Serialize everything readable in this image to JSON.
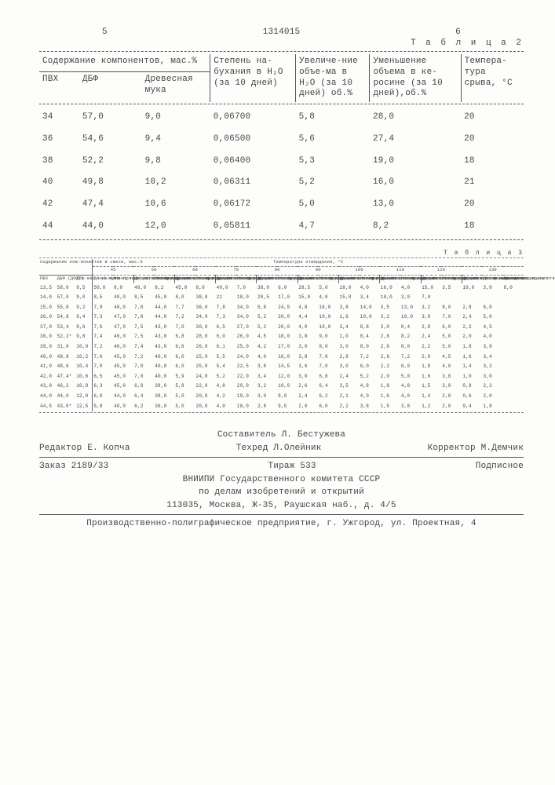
{
  "header": {
    "leftNum": "5",
    "docNum": "1314015",
    "rightNum": "6",
    "table2Label": "Т а б л и ц а 2"
  },
  "table2": {
    "groupHeader": "Содержание компонентов, мас.%",
    "cols": {
      "c1": "ПВХ",
      "c2": "ДБФ",
      "c3": "Древесная мука",
      "c4": "Степень на-бухания в H₂O (за 10 дней)",
      "c5": "Увеличе-ние объе-ма в H₂O (за 10 дней) об.%",
      "c6": "Уменьшение объема в ке-росине (за 10 дней),об.%",
      "c7": "Темпера-тура срыва, °С"
    },
    "rows": [
      {
        "c1": "34",
        "c2": "57,0",
        "c3": "9,0",
        "c4": "0,06700",
        "c5": "5,8",
        "c6": "28,0",
        "c7": "20"
      },
      {
        "c1": "36",
        "c2": "54,6",
        "c3": "9,4",
        "c4": "0,06500",
        "c5": "5,6",
        "c6": "27,4",
        "c7": "20"
      },
      {
        "c1": "38",
        "c2": "52,2",
        "c3": "9,8",
        "c4": "0,06400",
        "c5": "5,3",
        "c6": "19,0",
        "c7": "18"
      },
      {
        "c1": "40",
        "c2": "49,8",
        "c3": "10,2",
        "c4": "0,06311",
        "c5": "5,2",
        "c6": "16,0",
        "c7": "21"
      },
      {
        "c1": "42",
        "c2": "47,4",
        "c3": "10,6",
        "c4": "0,06172",
        "c5": "5,0",
        "c6": "13,0",
        "c7": "20"
      },
      {
        "c1": "44",
        "c2": "44,0",
        "c3": "12,0",
        "c4": "0,05811",
        "c5": "4,7",
        "c6": "8,2",
        "c7": "18"
      }
    ]
  },
  "table3": {
    "label": "Т а б л и ц а 3",
    "leftGroupHeader": "Содержание ком-понентов в смеси, мас.%",
    "tempHeader": "Температура отвердения, °С",
    "tempCols": [
      "45",
      "50",
      "60",
      "70",
      "80",
      "90",
      "100",
      "110",
      "120",
      "130"
    ],
    "mixCols": {
      "c1": "ПВХ",
      "c2": "ДБФ (ДОФ*)",
      "c3": "Дре-вес-ная мука"
    },
    "phase": {
      "before": "До на-чала про-цес-са от-вер-жде-ния",
      "end": "Конец про-цесса от-вер-жде-ния",
      "before2": "До на-чала от-вер-ждения",
      "end2": "Конец процес-са отв-ердения"
    },
    "rows": [
      {
        "mix": [
          "13,5",
          "58,0",
          "8,5"
        ],
        "vals": [
          "50,0",
          "8,0",
          "48,0",
          "8,2",
          "45,0",
          "8,0",
          "40,0",
          "7,0",
          "38,0",
          "6,0",
          "28,5",
          "5,0",
          "18,0",
          "4,0",
          "16,0",
          "4,0",
          "15,0",
          "3,5",
          "10,0",
          "3,0",
          "8,0"
        ]
      },
      {
        "mix": [
          "14,0",
          "57,0",
          "9,0"
        ],
        "vals": [
          "8,5",
          "48,0",
          "8,5",
          "45,0",
          "8,0",
          "38,0",
          "21",
          "18,0",
          "20,5",
          "17,0",
          "15,0",
          "4,0",
          "15,0",
          "3,4",
          "10,0",
          "3,0",
          "7,0",
          "",
          "",
          "",
          ""
        ]
      },
      {
        "mix": [
          "15,0",
          "55,8",
          "9,2"
        ],
        "vals": [
          "7,8",
          "48,0",
          "7,8",
          "44,0",
          "7,7",
          "36,0",
          "7,8",
          "34,0",
          "5,8",
          "24,5",
          "4,8",
          "16,0",
          "3,8",
          "14,0",
          "3,5",
          "13,0",
          "3,2",
          "8,0",
          "2,8",
          "6,0",
          ""
        ]
      },
      {
        "mix": [
          "36,0",
          "54,6",
          "9,4"
        ],
        "vals": [
          "7,3",
          "47,0",
          "7,8",
          "44,0",
          "7,2",
          "34,0",
          "7,3",
          "34,0",
          "5,2",
          "20,0",
          "4,4",
          "10,0",
          "1,6",
          "10,0",
          "3,2",
          "10,0",
          "3,0",
          "7,0",
          "2,4",
          "5,0",
          ""
        ]
      },
      {
        "mix": [
          "37,0",
          "53,4",
          "9,6"
        ],
        "vals": [
          "7,6",
          "47,0",
          "7,5",
          "43,0",
          "7,0",
          "30,0",
          "6,5",
          "27,0",
          "5,2",
          "20,0",
          "4,0",
          "10,0",
          "3,4",
          "8,8",
          "3,0",
          "8,4",
          "2,8",
          "6,0",
          "2,2",
          "4,5",
          ""
        ]
      },
      {
        "mix": [
          "38,0",
          "52,2*",
          "9,8"
        ],
        "vals": [
          "7,4",
          "46,0",
          "7,5",
          "43,0",
          "6,8",
          "28,0",
          "6,0",
          "26,0",
          "4,5",
          "18,0",
          "3,8",
          "9,0",
          "1,0",
          "8,4",
          "2,8",
          "8,2",
          "2,4",
          "5,0",
          "2,0",
          "4,0",
          ""
        ]
      },
      {
        "mix": [
          "39,0",
          "31,0",
          "10,0"
        ],
        "vals": [
          "7,2",
          "46,0",
          "7,4",
          "43,0",
          "6,6",
          "26,0",
          "6,1",
          "25,0",
          "4,2",
          "17,0",
          "3,0",
          "8,0",
          "3,0",
          "8,0",
          "2,6",
          "8,0",
          "2,2",
          "5,0",
          "1,8",
          "3,8",
          ""
        ]
      },
      {
        "mix": [
          "40,0",
          "49,8",
          "10,2"
        ],
        "vals": [
          "7,0",
          "45,0",
          "7,2",
          "40,0",
          "6,0",
          "25,0",
          "5,5",
          "24,0",
          "4,0",
          "16,0",
          "3,8",
          "7,0",
          "2,8",
          "7,2",
          "2,6",
          "7,2",
          "2,0",
          "4,5",
          "1,6",
          "3,4",
          ""
        ]
      },
      {
        "mix": [
          "41,0",
          "48,6",
          "10,4"
        ],
        "vals": [
          "7,0",
          "45,0",
          "7,0",
          "40,0",
          "6,0",
          "25,0",
          "5,4",
          "22,5",
          "3,8",
          "14,5",
          "3,6",
          "7,0",
          "3,0",
          "6,0",
          "2,2",
          "6,0",
          "1,8",
          "4,0",
          "1,4",
          "3,2",
          ""
        ]
      },
      {
        "mix": [
          "42,0",
          "47,4*",
          "10,6"
        ],
        "vals": [
          "6,5",
          "45,0",
          "7,0",
          "40,0",
          "5,9",
          "24,0",
          "5,2",
          "22,0",
          "3,4",
          "12,0",
          "3,0",
          "6,8",
          "2,4",
          "5,2",
          "2,0",
          "5,0",
          "1,6",
          "3,8",
          "1,0",
          "3,0",
          ""
        ]
      },
      {
        "mix": [
          "43,0",
          "46,2",
          "10,8"
        ],
        "vals": [
          "6,3",
          "45,0",
          "6,8",
          "38,0",
          "5,8",
          "22,0",
          "4,8",
          "20,0",
          "3,2",
          "10,0",
          "2,6",
          "6,4",
          "3,5",
          "4,8",
          "1,8",
          "4,8",
          "1,5",
          "3,0",
          "0,8",
          "2,2",
          ""
        ]
      },
      {
        "mix": [
          "44,0",
          "44,0",
          "12,0"
        ],
        "vals": [
          "6,0",
          "44,0",
          "6,4",
          "38,0",
          "5,0",
          "20,0",
          "4,2",
          "19,0",
          "3,0",
          "9,0",
          "2,4",
          "6,2",
          "2,1",
          "4,0",
          "1,6",
          "4,0",
          "1,4",
          "2,8",
          "0,6",
          "2,0",
          ""
        ]
      },
      {
        "mix": [
          "44,5",
          "43,0*",
          "12,5"
        ],
        "vals": [
          "5,8",
          "40,0",
          "6,2",
          "36,0",
          "5,0",
          "20,0",
          "4,0",
          "18,0",
          "2,8",
          "9,5",
          "2,0",
          "6,0",
          "2,2",
          "3,8",
          "1,5",
          "3,8",
          "1,2",
          "2,0",
          "0,4",
          "1,8",
          ""
        ]
      }
    ]
  },
  "footer": {
    "compiler": "Составитель Л. Бестужева",
    "editor": "Редактор Е. Копча",
    "tech": "Техред Л.Олейник",
    "corrector": "Корректор М.Демчик",
    "order": "Заказ 2189/33",
    "tirage": "Тираж 533",
    "sign": "Подписное",
    "org1": "ВНИИПИ Государственного комитета СССР",
    "org2": "по делам изобретений и открытий",
    "addr": "113035, Москва, Ж-35, Раушская наб., д. 4/5",
    "printer": "Производственно-полиграфическое предприятие, г. Ужгород, ул. Проектная, 4"
  }
}
